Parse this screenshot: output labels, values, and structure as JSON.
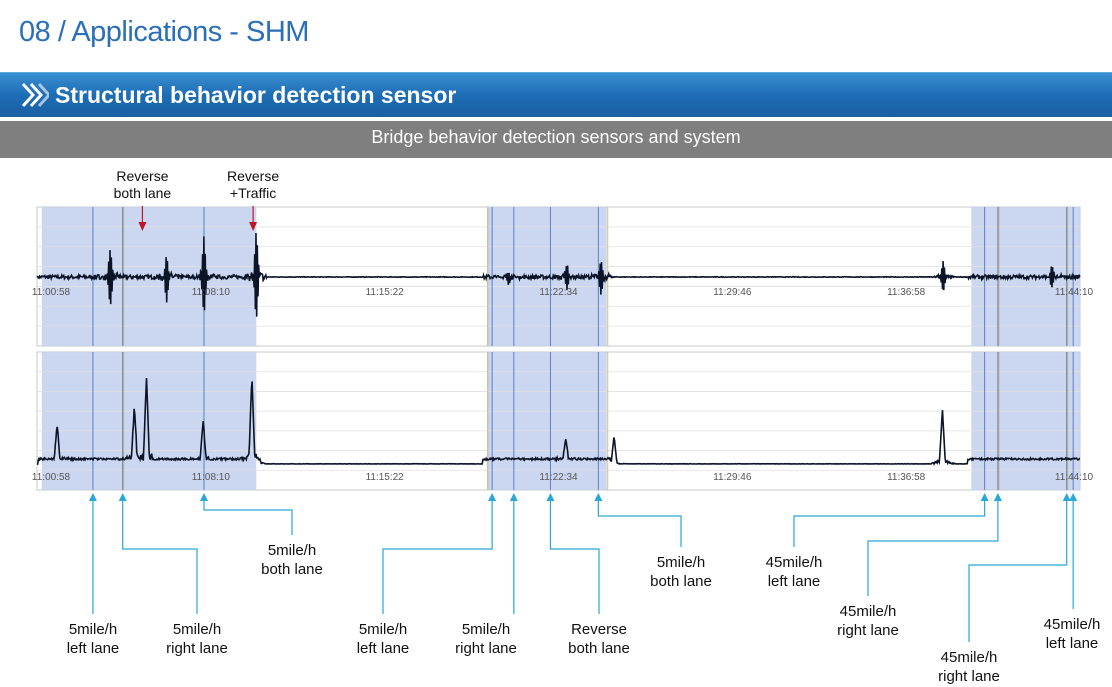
{
  "header": {
    "title": "08 / Applications - SHM",
    "section": "Structural behavior detection sensor",
    "subtitle": "Bridge behavior detection sensors and system"
  },
  "colors": {
    "title_blue": "#2a6fb8",
    "section_bar": "#1d6db5",
    "subtitle_bar": "#7f7f7f",
    "highlight_region": "#c5d3ee",
    "signal": "#0b1428",
    "callout_line": "#29a7d8",
    "event_marker_red": "#c0142c"
  },
  "chart_data": [
    {
      "type": "line",
      "panel": "upper",
      "x_ticks": [
        "11:00:58",
        "11:08:10",
        "11:15:22",
        "11:22:34",
        "11:29:46",
        "11:36:58",
        "11:44:10"
      ],
      "xlim": [
        "11:00:58",
        "11:44:10"
      ],
      "baseline": "centered",
      "grid": true,
      "highlighted_ranges": [
        [
          "11:01:10",
          "11:10:03"
        ],
        [
          "11:19:36",
          "11:24:34"
        ],
        [
          "11:39:40",
          "11:44:10"
        ]
      ],
      "events": [
        {
          "time": "11:04:00",
          "amplitude": 0.55
        },
        {
          "time": "11:06:20",
          "amplitude": 0.45
        },
        {
          "time": "11:07:53",
          "amplitude": 0.75
        },
        {
          "time": "11:10:03",
          "amplitude": 0.85
        },
        {
          "time": "11:20:30",
          "amplitude": 0.12
        },
        {
          "time": "11:22:55",
          "amplitude": 0.25
        },
        {
          "time": "11:24:20",
          "amplitude": 0.35
        },
        {
          "time": "11:38:30",
          "amplitude": 0.3
        },
        {
          "time": "11:43:00",
          "amplitude": 0.2
        }
      ],
      "annotations": [
        {
          "time": "11:05:20",
          "text": [
            "Reverse",
            "both lane"
          ]
        },
        {
          "time": "11:09:55",
          "text": [
            "Reverse",
            "+Traffic"
          ]
        }
      ]
    },
    {
      "type": "line",
      "panel": "lower",
      "x_ticks": [
        "11:00:58",
        "11:08:10",
        "11:15:22",
        "11:22:34",
        "11:29:46",
        "11:36:58",
        "11:44:10"
      ],
      "xlim": [
        "11:00:58",
        "11:44:10"
      ],
      "baseline": "bottom",
      "grid": true,
      "highlighted_ranges": [
        [
          "11:01:10",
          "11:10:03"
        ],
        [
          "11:19:36",
          "11:24:34"
        ],
        [
          "11:39:40",
          "11:44:10"
        ]
      ],
      "events": [
        {
          "time": "11:01:48",
          "amplitude": 0.35
        },
        {
          "time": "11:05:00",
          "amplitude": 0.55
        },
        {
          "time": "11:05:30",
          "amplitude": 0.85
        },
        {
          "time": "11:07:51",
          "amplitude": 0.4
        },
        {
          "time": "11:09:52",
          "amplitude": 0.85
        },
        {
          "time": "11:22:52",
          "amplitude": 0.2
        },
        {
          "time": "11:24:52",
          "amplitude": 0.28
        },
        {
          "time": "11:38:28",
          "amplitude": 0.55
        }
      ]
    }
  ],
  "callouts": [
    {
      "lines": [
        "5mile/h",
        "left lane"
      ],
      "time": "11:03:17",
      "panel_time": "11:03:17"
    },
    {
      "lines": [
        "5mile/h",
        "right lane"
      ],
      "time": "11:04:31",
      "panel_time": "11:04:31"
    },
    {
      "lines": [
        "5mile/h",
        "both lane"
      ],
      "time": "11:07:53",
      "panel_time": "11:07:53"
    },
    {
      "lines": [
        "5mile/h",
        "left lane"
      ],
      "time": "11:19:49",
      "panel_time": "11:19:49"
    },
    {
      "lines": [
        "5mile/h",
        "right lane"
      ],
      "time": "11:20:43",
      "panel_time": "11:20:43"
    },
    {
      "lines": [
        "Reverse",
        "both lane"
      ],
      "time": "11:22:14",
      "panel_time": "11:22:14"
    },
    {
      "lines": [
        "5mile/h",
        "both lane"
      ],
      "time": "11:24:13",
      "panel_time": "11:24:13"
    },
    {
      "lines": [
        "45mile/h",
        "left lane"
      ],
      "time": "11:40:13",
      "panel_time": "11:40:13"
    },
    {
      "lines": [
        "45mile/h",
        "right lane"
      ],
      "time": "11:40:46",
      "panel_time": "11:40:46"
    },
    {
      "lines": [
        "45mile/h",
        "right lane"
      ],
      "time": "11:43:37",
      "panel_time": "11:43:37"
    },
    {
      "lines": [
        "45mile/h",
        "left lane"
      ],
      "time": "11:43:53",
      "panel_time": "11:43:53"
    }
  ]
}
